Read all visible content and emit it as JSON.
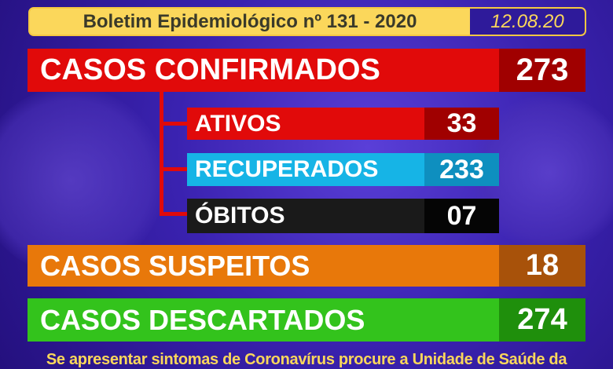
{
  "header": {
    "title": "Boletim Epidemiológico nº 131 - 2020",
    "date": "12.08.20"
  },
  "confirmados": {
    "label": "CASOS CONFIRMADOS",
    "value": "273"
  },
  "ativos": {
    "label": "ATIVOS",
    "value": "33"
  },
  "recuperados": {
    "label": "RECUPERADOS",
    "value": "233"
  },
  "obitos": {
    "label": "ÓBITOS",
    "value": "07"
  },
  "suspeitos": {
    "label": "CASOS SUSPEITOS",
    "value": "18"
  },
  "descartados": {
    "label": "CASOS DESCARTADOS",
    "value": "274"
  },
  "footer": {
    "text": "Se apresentar sintomas de Coronavírus procure a Unidade de Saúde da"
  },
  "colors": {
    "red": "#e10a0a",
    "dark_red": "#a00000",
    "cyan": "#16b4e6",
    "dark_cyan": "#0e8fbf",
    "black": "#1a1a1a",
    "orange": "#e8780a",
    "brown": "#a8520a",
    "green": "#33c31c",
    "dark_green": "#1f8f0c",
    "yellow": "#fbd75b",
    "date_bg": "#2e1a9a"
  }
}
